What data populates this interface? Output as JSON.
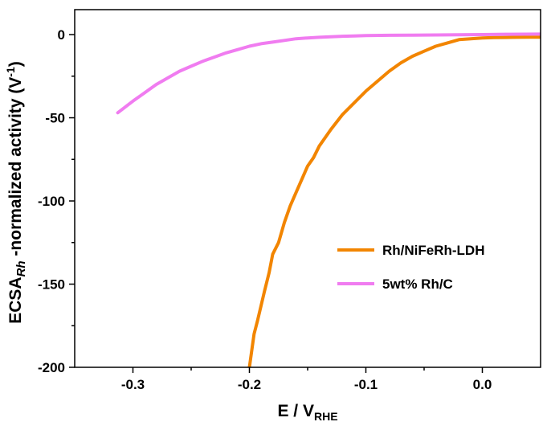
{
  "chart_data": {
    "type": "line",
    "title": "",
    "xlabel": {
      "main": "E / V",
      "sub": "RHE"
    },
    "ylabel": {
      "prefix": "ECSA",
      "sub": "Rh",
      "middle": " -normalized activity (V",
      "sup": "-1",
      "suffix": ")"
    },
    "xlim": [
      -0.35,
      0.05
    ],
    "ylim": [
      -200,
      15
    ],
    "x_ticks": [
      -0.3,
      -0.2,
      -0.1,
      0.0
    ],
    "x_tick_labels": [
      "-0.3",
      "-0.2",
      "-0.1",
      "0.0"
    ],
    "y_ticks": [
      0,
      -50,
      -100,
      -150,
      -200
    ],
    "y_tick_labels": [
      "0",
      "-50",
      "-100",
      "-150",
      "-200"
    ],
    "grid": false,
    "legend_position": "bottom-right",
    "series": [
      {
        "name": "Rh/NiFeRh-LDH",
        "color": "#f28500",
        "x": [
          -0.2,
          -0.198,
          -0.196,
          -0.193,
          -0.19,
          -0.187,
          -0.183,
          -0.18,
          -0.175,
          -0.17,
          -0.165,
          -0.16,
          -0.155,
          -0.15,
          -0.145,
          -0.14,
          -0.13,
          -0.12,
          -0.11,
          -0.1,
          -0.09,
          -0.08,
          -0.07,
          -0.06,
          -0.05,
          -0.04,
          -0.03,
          -0.02,
          -0.01,
          0.0,
          0.01,
          0.02,
          0.03,
          0.04,
          0.05
        ],
        "y": [
          -200,
          -190,
          -180,
          -172,
          -163,
          -154,
          -143,
          -132,
          -125,
          -113,
          -103,
          -95,
          -87,
          -79,
          -74,
          -67,
          -57,
          -48,
          -41,
          -34,
          -28,
          -22,
          -17,
          -13,
          -10,
          -7,
          -5,
          -3,
          -2.5,
          -2,
          -1.8,
          -1.7,
          -1.6,
          -1.5,
          -1.5
        ]
      },
      {
        "name": "5wt% Rh/C",
        "color": "#f07cf0",
        "x": [
          -0.313,
          -0.3,
          -0.29,
          -0.28,
          -0.27,
          -0.26,
          -0.25,
          -0.24,
          -0.23,
          -0.22,
          -0.21,
          -0.2,
          -0.19,
          -0.18,
          -0.17,
          -0.16,
          -0.15,
          -0.14,
          -0.13,
          -0.12,
          -0.11,
          -0.1,
          -0.08,
          -0.06,
          -0.04,
          -0.02,
          0.0,
          0.02,
          0.05
        ],
        "y": [
          -47,
          -40,
          -35,
          -30,
          -26,
          -22,
          -19,
          -16,
          -13.5,
          -11,
          -9,
          -7,
          -5.5,
          -4.5,
          -3.5,
          -2.5,
          -2,
          -1.6,
          -1.3,
          -1,
          -0.8,
          -0.6,
          -0.4,
          -0.3,
          -0.2,
          -0.1,
          0,
          0.2,
          0.3
        ]
      }
    ]
  }
}
